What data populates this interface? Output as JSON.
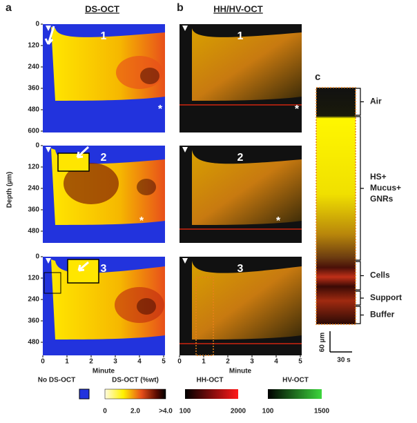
{
  "panel_a": {
    "label": "a",
    "title": "DS-OCT",
    "y_axis_label": "Depth (µm)",
    "x_axis_label": "Minute",
    "x_ticks": [
      0,
      1,
      2,
      3,
      4,
      5
    ],
    "rows": [
      {
        "number": "1",
        "y_ticks": [
          0,
          120,
          240,
          360,
          480,
          600
        ],
        "asterisk": "*"
      },
      {
        "number": "2",
        "y_ticks": [
          0,
          120,
          240,
          360,
          480
        ],
        "asterisk": "*"
      },
      {
        "number": "3",
        "y_ticks": [
          0,
          120,
          240,
          360,
          480
        ]
      }
    ]
  },
  "panel_b": {
    "label": "b",
    "title": "HH/HV-OCT",
    "x_axis_label": "Minute",
    "x_ticks": [
      0,
      1,
      2,
      3,
      4,
      5
    ],
    "rows": [
      {
        "number": "1",
        "asterisk": "*"
      },
      {
        "number": "2",
        "asterisk": "*"
      },
      {
        "number": "3"
      }
    ]
  },
  "panel_c": {
    "label": "c",
    "regions": [
      {
        "lines": [
          "Air"
        ]
      },
      {
        "lines": [
          "HS+",
          "Mucus+",
          "GNRs"
        ]
      },
      {
        "lines": [
          "Cells"
        ]
      },
      {
        "lines": [
          "Support"
        ]
      },
      {
        "lines": [
          "Buffer"
        ]
      }
    ],
    "scale_depth": "60 µm",
    "scale_time": "30 s"
  },
  "legend": {
    "no_ds_label": "No DS-OCT",
    "ds_label": "DS-OCT (%wt)",
    "ds_ticks": [
      "0",
      "2.0",
      ">4.0"
    ],
    "hh_label": "HH-OCT",
    "hh_ticks": [
      100,
      2000
    ],
    "hv_label": "HV-OCT",
    "hv_ticks": [
      100,
      1500
    ]
  }
}
